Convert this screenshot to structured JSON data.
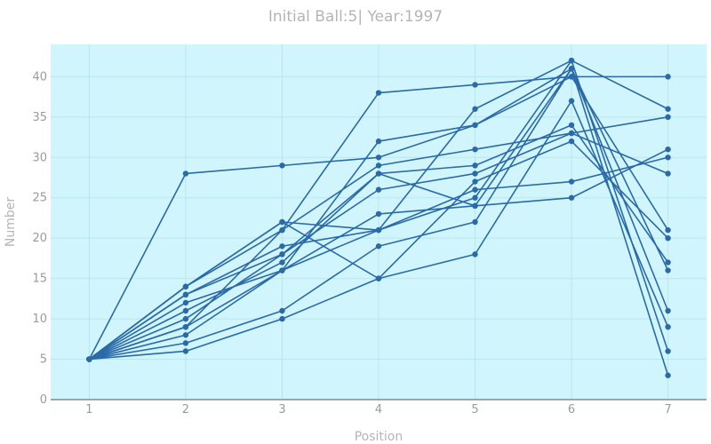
{
  "chart_data": {
    "type": "line",
    "title": "Initial Ball:5| Year:1997",
    "xlabel": "Position",
    "ylabel": "Number",
    "x": [
      1,
      2,
      3,
      4,
      5,
      6,
      7
    ],
    "xlim": [
      0.6,
      7.4
    ],
    "ylim": [
      0,
      44
    ],
    "x_ticks": [
      1,
      2,
      3,
      4,
      5,
      6,
      7
    ],
    "y_ticks": [
      0,
      5,
      10,
      15,
      20,
      25,
      30,
      35,
      40
    ],
    "grid": true,
    "legend": "none",
    "colors": {
      "line": "#2b6aa8",
      "plot_background": "#d1f5fc",
      "grid": "#b9e6ef",
      "axis": "#888888"
    },
    "series": [
      {
        "values": [
          5,
          28,
          29,
          30,
          34,
          40,
          40
        ]
      },
      {
        "values": [
          5,
          14,
          21,
          38,
          39,
          40,
          21
        ]
      },
      {
        "values": [
          5,
          14,
          22,
          21,
          25,
          42,
          36
        ]
      },
      {
        "values": [
          5,
          13,
          19,
          21,
          36,
          42,
          6
        ]
      },
      {
        "values": [
          5,
          12,
          16,
          32,
          34,
          41,
          3
        ]
      },
      {
        "values": [
          5,
          11,
          17,
          28,
          29,
          34,
          17
        ]
      },
      {
        "values": [
          5,
          10,
          18,
          26,
          28,
          33,
          35
        ]
      },
      {
        "values": [
          5,
          9,
          21,
          29,
          31,
          33,
          28
        ]
      },
      {
        "values": [
          5,
          8,
          16,
          23,
          24,
          25,
          31
        ]
      },
      {
        "values": [
          5,
          7,
          11,
          19,
          22,
          41,
          16
        ]
      },
      {
        "values": [
          5,
          6,
          10,
          15,
          27,
          32,
          20
        ]
      },
      {
        "values": [
          5,
          14,
          22,
          15,
          18,
          37,
          9
        ]
      },
      {
        "values": [
          5,
          9,
          16,
          21,
          26,
          27,
          30
        ]
      },
      {
        "values": [
          5,
          13,
          18,
          28,
          24,
          41,
          11
        ]
      }
    ]
  }
}
